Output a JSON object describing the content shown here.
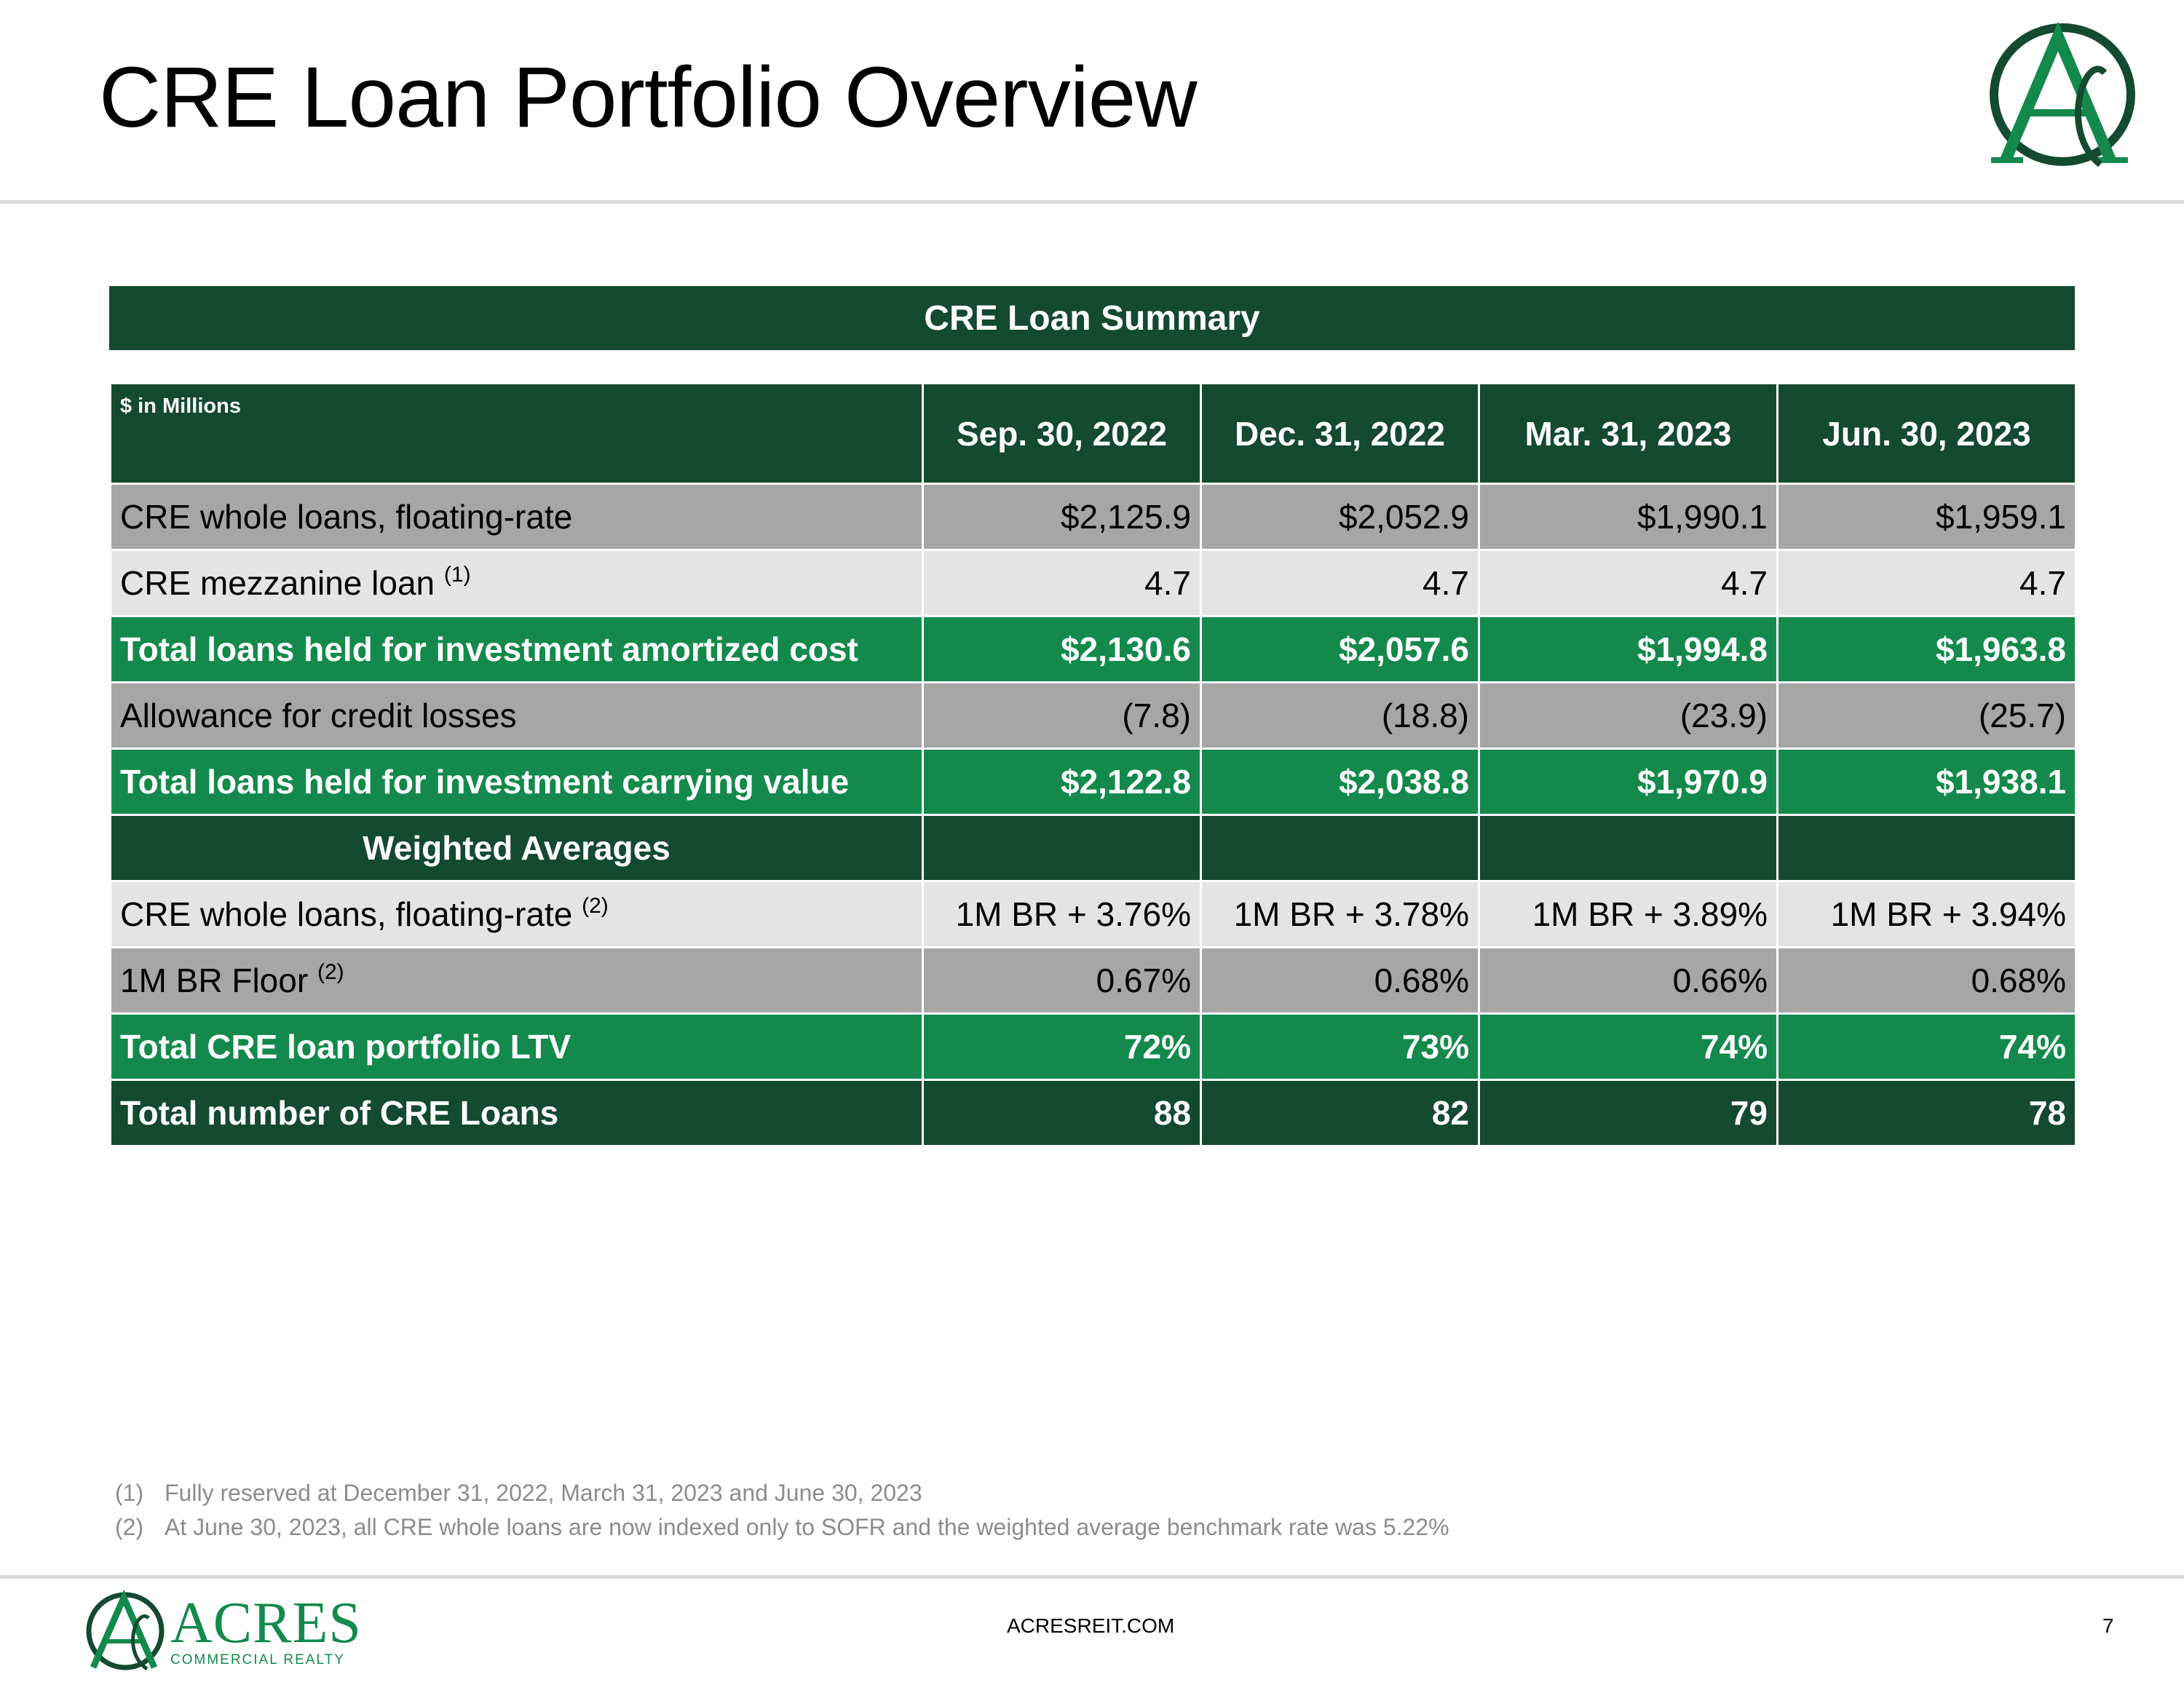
{
  "page": {
    "title": "CRE Loan Portfolio Overview",
    "number": "7",
    "website": "ACRESREIT.COM"
  },
  "colors": {
    "dark_green": "#144a2f",
    "bright_green": "#138a4c",
    "gray_row": "#a6a6a6",
    "light_row": "#e3e5e4"
  },
  "logo": {
    "icon": "acres-a-monogram-icon",
    "name": "ACRES",
    "subtitle": "COMMERCIAL REALTY"
  },
  "summary": {
    "title": "CRE Loan Summary",
    "unit_label": "$ in Millions",
    "columns": [
      "Sep. 30, 2022",
      "Dec. 31, 2022",
      "Mar. 31, 2023",
      "Jun. 30, 2023"
    ],
    "rows": [
      {
        "label": "CRE whole loans, floating-rate",
        "note": "",
        "values": [
          "$2,125.9",
          "$2,052.9",
          "$1,990.1",
          "$1,959.1"
        ]
      },
      {
        "label": "CRE mezzanine loan",
        "note": "(1)",
        "values": [
          "4.7",
          "4.7",
          "4.7",
          "4.7"
        ]
      },
      {
        "label": "Total loans held for investment amortized cost",
        "note": "",
        "values": [
          "$2,130.6",
          "$2,057.6",
          "$1,994.8",
          "$1,963.8"
        ]
      },
      {
        "label": "Allowance for credit losses",
        "note": "",
        "values": [
          "(7.8)",
          "(18.8)",
          "(23.9)",
          "(25.7)"
        ]
      },
      {
        "label": "Total loans held for investment carrying value",
        "note": "",
        "values": [
          "$2,122.8",
          "$2,038.8",
          "$1,970.9",
          "$1,938.1"
        ]
      },
      {
        "label": "Weighted Averages",
        "note": "",
        "values": [
          "",
          "",
          "",
          ""
        ]
      },
      {
        "label": "CRE whole loans, floating-rate",
        "note": "(2)",
        "values": [
          "1M BR + 3.76%",
          "1M BR + 3.78%",
          "1M BR + 3.89%",
          "1M BR + 3.94%"
        ]
      },
      {
        "label": "1M BR Floor",
        "note": "(2)",
        "values": [
          "0.67%",
          "0.68%",
          "0.66%",
          "0.68%"
        ]
      },
      {
        "label": "Total CRE loan portfolio LTV",
        "note": "",
        "values": [
          "72%",
          "73%",
          "74%",
          "74%"
        ]
      },
      {
        "label": "Total number of CRE Loans",
        "note": "",
        "values": [
          "88",
          "82",
          "79",
          "78"
        ]
      }
    ]
  },
  "footnotes": [
    {
      "mark": "(1)",
      "text": "Fully reserved at December 31, 2022, March 31, 2023 and June 30, 2023"
    },
    {
      "mark": "(2)",
      "text": "At June 30, 2023, all CRE whole loans are now indexed only to SOFR and the weighted average benchmark rate was 5.22%"
    }
  ]
}
